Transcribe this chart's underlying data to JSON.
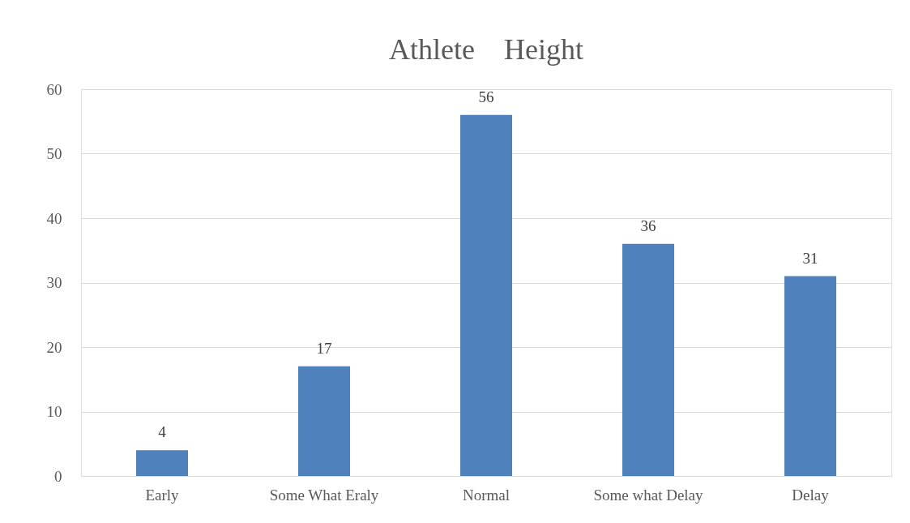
{
  "chart_data": {
    "type": "bar",
    "title": "Athlete　Height",
    "categories": [
      "Early",
      "Some What Eraly",
      "Normal",
      "Some what Delay",
      "Delay"
    ],
    "values": [
      4,
      17,
      56,
      36,
      31
    ],
    "color": "#4f81bd",
    "ylim": [
      0,
      60
    ],
    "yticks": [
      0,
      10,
      20,
      30,
      40,
      50,
      60
    ],
    "grid": "y",
    "data_labels": true
  }
}
